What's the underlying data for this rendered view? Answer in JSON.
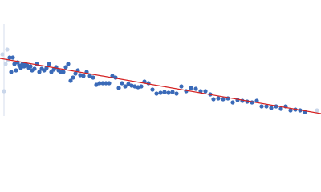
{
  "chart_data": {
    "type": "scatter",
    "xlim": [
      0,
      400
    ],
    "ylim": [
      0,
      200
    ],
    "series": [
      {
        "type": "scatter",
        "color": "#c9d6ea",
        "x": [
          3,
          5,
          7,
          9,
          10,
          395
        ],
        "values": [
          132,
          86,
          120,
          138,
          125,
          62
        ]
      },
      {
        "type": "scatter",
        "color": "#3a6ab8",
        "x": [
          12,
          14,
          16,
          18,
          20,
          22,
          24,
          26,
          28,
          30,
          32,
          34,
          36,
          38,
          40,
          43,
          46,
          49,
          52,
          55,
          58,
          61,
          64,
          67,
          70,
          73,
          76,
          79,
          82,
          85,
          88,
          91,
          94,
          97,
          100,
          104,
          108,
          112,
          116,
          120,
          124,
          128,
          132,
          136,
          140,
          144,
          148,
          152,
          156,
          160,
          164,
          168,
          172,
          176,
          180,
          185,
          190,
          195,
          200,
          205,
          210,
          215,
          220,
          226,
          232,
          238,
          244,
          250,
          256,
          262,
          266,
          272,
          278,
          284,
          290,
          296,
          302,
          308,
          314,
          320,
          326,
          332,
          338,
          344,
          350,
          356,
          362,
          368,
          374,
          380
        ],
        "values": [
          128,
          110,
          128,
          120,
          112,
          122,
          118,
          115,
          120,
          117,
          120,
          118,
          115,
          117,
          112,
          114,
          120,
          110,
          114,
          112,
          115,
          120,
          110,
          113,
          116,
          112,
          110,
          110,
          116,
          120,
          99,
          103,
          108,
          112,
          106,
          105,
          110,
          105,
          103,
          94,
          96,
          96,
          96,
          96,
          105,
          103,
          90,
          96,
          92,
          95,
          93,
          92,
          91,
          92,
          98,
          96,
          88,
          83,
          84,
          85,
          84,
          85,
          83,
          92,
          86,
          90,
          89,
          86,
          86,
          82,
          76,
          77,
          76,
          77,
          72,
          75,
          74,
          73,
          72,
          74,
          67,
          67,
          65,
          67,
          64,
          67,
          62,
          63,
          62,
          60
        ]
      },
      {
        "type": "line",
        "color": "#d42020",
        "x": [
          0,
          400
        ],
        "values": [
          127,
          58
        ]
      }
    ]
  }
}
